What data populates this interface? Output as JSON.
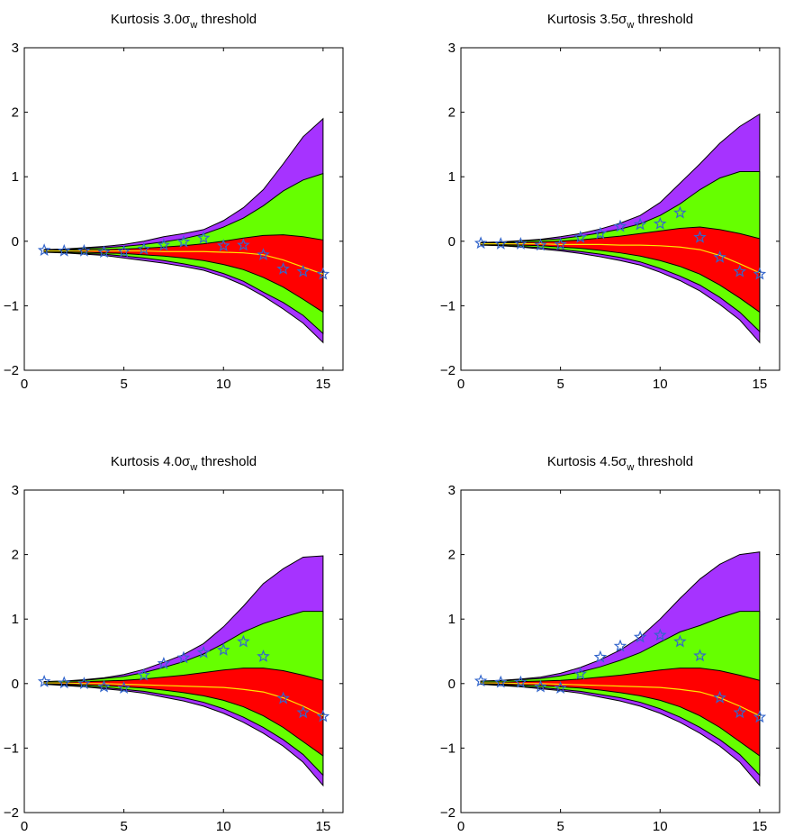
{
  "chart_data": [
    {
      "type": "area",
      "title": "Kurtosis 3.0σw threshold",
      "title_parts": {
        "pre": "Kurtosis 3.0σ",
        "sub": "w",
        "post": " threshold"
      },
      "xlim": [
        0,
        16
      ],
      "ylim": [
        -2,
        3
      ],
      "xticks": [
        0,
        5,
        10,
        15
      ],
      "yticks": [
        -2,
        -1,
        0,
        1,
        2,
        3
      ],
      "x": [
        1,
        2,
        3,
        4,
        5,
        6,
        7,
        8,
        9,
        10,
        11,
        12,
        13,
        14,
        15
      ],
      "bands": {
        "outer_upper": [
          -0.13,
          -0.12,
          -0.1,
          -0.08,
          -0.05,
          0.0,
          0.07,
          0.12,
          0.18,
          0.32,
          0.52,
          0.8,
          1.2,
          1.62,
          1.9
        ],
        "mid_upper": [
          -0.13,
          -0.13,
          -0.11,
          -0.1,
          -0.08,
          -0.05,
          -0.01,
          0.04,
          0.11,
          0.22,
          0.36,
          0.55,
          0.78,
          0.95,
          1.05
        ],
        "inner_upper": [
          -0.14,
          -0.14,
          -0.13,
          -0.13,
          -0.12,
          -0.11,
          -0.09,
          -0.07,
          -0.04,
          0.0,
          0.05,
          0.09,
          0.1,
          0.07,
          0.02
        ],
        "median": [
          -0.15,
          -0.15,
          -0.15,
          -0.15,
          -0.15,
          -0.15,
          -0.16,
          -0.16,
          -0.16,
          -0.17,
          -0.18,
          -0.21,
          -0.29,
          -0.4,
          -0.51
        ],
        "inner_lower": [
          -0.16,
          -0.16,
          -0.17,
          -0.18,
          -0.19,
          -0.21,
          -0.23,
          -0.26,
          -0.3,
          -0.36,
          -0.44,
          -0.56,
          -0.71,
          -0.9,
          -1.1
        ],
        "mid_lower": [
          -0.17,
          -0.17,
          -0.19,
          -0.2,
          -0.23,
          -0.26,
          -0.3,
          -0.35,
          -0.41,
          -0.5,
          -0.62,
          -0.79,
          -0.95,
          -1.15,
          -1.43
        ],
        "outer_lower": [
          -0.17,
          -0.18,
          -0.2,
          -0.22,
          -0.26,
          -0.3,
          -0.34,
          -0.39,
          -0.45,
          -0.55,
          -0.68,
          -0.85,
          -1.05,
          -1.27,
          -1.57
        ]
      },
      "stars": [
        -0.14,
        -0.15,
        -0.15,
        -0.17,
        -0.16,
        -0.12,
        -0.06,
        -0.01,
        0.05,
        -0.07,
        -0.06,
        -0.21,
        -0.43,
        -0.47,
        -0.51
      ]
    },
    {
      "type": "area",
      "title": "Kurtosis 3.5σw threshold",
      "title_parts": {
        "pre": "Kurtosis 3.5σ",
        "sub": "w",
        "post": " threshold"
      },
      "xlim": [
        0,
        16
      ],
      "ylim": [
        -2,
        3
      ],
      "xticks": [
        0,
        5,
        10,
        15
      ],
      "yticks": [
        -2,
        -1,
        0,
        1,
        2,
        3
      ],
      "x": [
        1,
        2,
        3,
        4,
        5,
        6,
        7,
        8,
        9,
        10,
        11,
        12,
        13,
        14,
        15
      ],
      "bands": {
        "outer_upper": [
          -0.02,
          -0.01,
          0.01,
          0.03,
          0.07,
          0.12,
          0.19,
          0.28,
          0.4,
          0.6,
          0.9,
          1.2,
          1.52,
          1.78,
          1.97
        ],
        "mid_upper": [
          -0.02,
          -0.02,
          0.0,
          0.02,
          0.04,
          0.08,
          0.13,
          0.19,
          0.27,
          0.4,
          0.58,
          0.8,
          0.98,
          1.08,
          1.08
        ],
        "inner_upper": [
          -0.03,
          -0.03,
          -0.02,
          -0.01,
          0.0,
          0.02,
          0.05,
          0.08,
          0.12,
          0.16,
          0.2,
          0.22,
          0.18,
          0.12,
          0.04
        ],
        "median": [
          -0.04,
          -0.04,
          -0.04,
          -0.04,
          -0.05,
          -0.05,
          -0.05,
          -0.06,
          -0.06,
          -0.07,
          -0.09,
          -0.13,
          -0.22,
          -0.35,
          -0.49
        ],
        "inner_lower": [
          -0.05,
          -0.05,
          -0.06,
          -0.07,
          -0.09,
          -0.11,
          -0.14,
          -0.18,
          -0.23,
          -0.3,
          -0.39,
          -0.51,
          -0.68,
          -0.88,
          -1.1
        ],
        "mid_lower": [
          -0.05,
          -0.06,
          -0.08,
          -0.1,
          -0.13,
          -0.16,
          -0.2,
          -0.25,
          -0.32,
          -0.42,
          -0.54,
          -0.68,
          -0.87,
          -1.1,
          -1.4
        ],
        "outer_lower": [
          -0.06,
          -0.07,
          -0.09,
          -0.12,
          -0.15,
          -0.19,
          -0.24,
          -0.3,
          -0.37,
          -0.48,
          -0.61,
          -0.77,
          -0.98,
          -1.22,
          -1.57
        ]
      },
      "stars": [
        -0.03,
        -0.04,
        -0.04,
        -0.06,
        -0.05,
        0.06,
        0.12,
        0.23,
        0.26,
        0.27,
        0.44,
        0.06,
        -0.25,
        -0.47,
        -0.51
      ]
    },
    {
      "type": "area",
      "title": "Kurtosis 4.0σw threshold",
      "title_parts": {
        "pre": "Kurtosis 4.0σ",
        "sub": "w",
        "post": " threshold"
      },
      "xlim": [
        0,
        16
      ],
      "ylim": [
        -2,
        3
      ],
      "xticks": [
        0,
        5,
        10,
        15
      ],
      "yticks": [
        -2,
        -1,
        0,
        1,
        2,
        3
      ],
      "x": [
        1,
        2,
        3,
        4,
        5,
        6,
        7,
        8,
        9,
        10,
        11,
        12,
        13,
        14,
        15
      ],
      "bands": {
        "outer_upper": [
          0.03,
          0.04,
          0.06,
          0.09,
          0.14,
          0.22,
          0.33,
          0.45,
          0.62,
          0.88,
          1.2,
          1.55,
          1.78,
          1.96,
          1.98
        ],
        "mid_upper": [
          0.03,
          0.04,
          0.05,
          0.08,
          0.11,
          0.17,
          0.25,
          0.34,
          0.46,
          0.62,
          0.8,
          0.93,
          1.03,
          1.12,
          1.12
        ],
        "inner_upper": [
          0.02,
          0.02,
          0.03,
          0.04,
          0.05,
          0.07,
          0.1,
          0.13,
          0.17,
          0.21,
          0.24,
          0.24,
          0.2,
          0.13,
          0.05
        ],
        "median": [
          0.01,
          0.01,
          0.0,
          0.0,
          -0.01,
          -0.02,
          -0.03,
          -0.04,
          -0.05,
          -0.06,
          -0.09,
          -0.13,
          -0.22,
          -0.35,
          -0.5
        ],
        "inner_lower": [
          0.0,
          -0.01,
          -0.02,
          -0.03,
          -0.05,
          -0.07,
          -0.1,
          -0.14,
          -0.19,
          -0.26,
          -0.36,
          -0.5,
          -0.68,
          -0.9,
          -1.12
        ],
        "mid_lower": [
          -0.01,
          -0.02,
          -0.04,
          -0.06,
          -0.09,
          -0.12,
          -0.17,
          -0.22,
          -0.29,
          -0.39,
          -0.52,
          -0.68,
          -0.87,
          -1.1,
          -1.42
        ],
        "outer_lower": [
          -0.01,
          -0.03,
          -0.05,
          -0.08,
          -0.11,
          -0.15,
          -0.21,
          -0.27,
          -0.35,
          -0.46,
          -0.6,
          -0.77,
          -0.97,
          -1.22,
          -1.58
        ]
      },
      "stars": [
        0.03,
        0.01,
        0.0,
        -0.05,
        -0.07,
        0.13,
        0.31,
        0.4,
        0.48,
        0.52,
        0.65,
        0.42,
        -0.23,
        -0.45,
        -0.51
      ]
    },
    {
      "type": "area",
      "title": "Kurtosis 4.5σw threshold",
      "title_parts": {
        "pre": "Kurtosis 4.5σ",
        "sub": "w",
        "post": " threshold"
      },
      "xlim": [
        0,
        16
      ],
      "ylim": [
        -2,
        3
      ],
      "xticks": [
        0,
        5,
        10,
        15
      ],
      "yticks": [
        -2,
        -1,
        0,
        1,
        2,
        3
      ],
      "x": [
        1,
        2,
        3,
        4,
        5,
        6,
        7,
        8,
        9,
        10,
        11,
        12,
        13,
        14,
        15
      ],
      "bands": {
        "outer_upper": [
          0.04,
          0.05,
          0.07,
          0.1,
          0.16,
          0.25,
          0.37,
          0.52,
          0.72,
          1.0,
          1.32,
          1.62,
          1.85,
          2.0,
          2.04
        ],
        "mid_upper": [
          0.04,
          0.04,
          0.06,
          0.08,
          0.12,
          0.18,
          0.26,
          0.36,
          0.48,
          0.64,
          0.8,
          0.9,
          1.02,
          1.12,
          1.12
        ],
        "inner_upper": [
          0.02,
          0.02,
          0.03,
          0.04,
          0.05,
          0.07,
          0.1,
          0.13,
          0.17,
          0.21,
          0.24,
          0.24,
          0.2,
          0.13,
          0.05
        ],
        "median": [
          0.01,
          0.01,
          0.0,
          0.0,
          -0.01,
          -0.02,
          -0.03,
          -0.04,
          -0.05,
          -0.06,
          -0.09,
          -0.13,
          -0.22,
          -0.35,
          -0.5
        ],
        "inner_lower": [
          0.0,
          -0.01,
          -0.02,
          -0.03,
          -0.05,
          -0.07,
          -0.1,
          -0.14,
          -0.19,
          -0.26,
          -0.36,
          -0.5,
          -0.68,
          -0.9,
          -1.12
        ],
        "mid_lower": [
          -0.01,
          -0.02,
          -0.04,
          -0.06,
          -0.09,
          -0.12,
          -0.17,
          -0.22,
          -0.29,
          -0.39,
          -0.52,
          -0.68,
          -0.87,
          -1.1,
          -1.42
        ],
        "outer_lower": [
          -0.01,
          -0.03,
          -0.05,
          -0.08,
          -0.11,
          -0.15,
          -0.21,
          -0.27,
          -0.35,
          -0.46,
          -0.6,
          -0.77,
          -0.97,
          -1.22,
          -1.58
        ]
      },
      "stars": [
        0.04,
        0.02,
        0.02,
        -0.05,
        -0.07,
        0.15,
        0.41,
        0.58,
        0.72,
        0.75,
        0.65,
        0.43,
        -0.22,
        -0.45,
        -0.52
      ]
    }
  ],
  "colors": {
    "outer_band": "#a633ff",
    "mid_band": "#66ff00",
    "inner_band": "#ff0000",
    "median_line": "#ffe600",
    "star_marker": "#3366cc",
    "axes": "#000000"
  }
}
